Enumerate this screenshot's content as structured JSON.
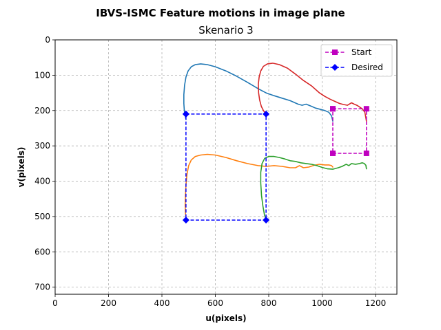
{
  "chart_data": {
    "type": "line",
    "suptitle": "IBVS-ISMC Feature motions in image plane",
    "title": "Skenario 3",
    "xlabel": "u(pixels)",
    "ylabel": "v(pixels)",
    "xlim": [
      0,
      1280
    ],
    "ylim": [
      720,
      0
    ],
    "y_inverted": true,
    "xticks": [
      0,
      200,
      400,
      600,
      800,
      1000,
      1200
    ],
    "yticks": [
      0,
      100,
      200,
      300,
      400,
      500,
      600,
      700
    ],
    "grid": true,
    "legend_position": "top-right",
    "legend": [
      {
        "label": "Start",
        "color": "#bf00bf",
        "marker": "square",
        "linestyle": "dashed"
      },
      {
        "label": "Desired",
        "color": "#0000ff",
        "marker": "diamond",
        "linestyle": "dashed"
      }
    ],
    "start_points": {
      "u": [
        1040,
        1166,
        1166,
        1040,
        1040
      ],
      "v": [
        195,
        195,
        321,
        321,
        195
      ]
    },
    "desired_points": {
      "u": [
        490,
        790,
        790,
        490,
        490
      ],
      "v": [
        210,
        210,
        510,
        510,
        210
      ]
    },
    "trajectories": [
      {
        "color": "#1f77b4",
        "u": [
          1040,
          1035,
          1025,
          1010,
          990,
          975,
          960,
          940,
          925,
          910,
          880,
          850,
          820,
          790,
          760,
          720,
          680,
          640,
          600,
          570,
          545,
          525,
          510,
          498,
          490,
          485,
          482,
          482,
          484,
          487,
          490
        ],
        "v": [
          230,
          215,
          205,
          200,
          196,
          193,
          188,
          182,
          185,
          182,
          172,
          165,
          158,
          150,
          138,
          120,
          103,
          88,
          76,
          70,
          68,
          70,
          76,
          88,
          105,
          128,
          155,
          180,
          200,
          215,
          225
        ]
      },
      {
        "color": "#d62728",
        "u": [
          1166,
          1160,
          1150,
          1140,
          1130,
          1120,
          1110,
          1095,
          1080,
          1065,
          1050,
          1030,
          1010,
          990,
          960,
          930,
          900,
          870,
          840,
          815,
          795,
          780,
          770,
          764,
          761,
          762,
          766,
          772,
          780,
          786,
          790
        ],
        "v": [
          230,
          205,
          195,
          190,
          185,
          182,
          178,
          185,
          183,
          180,
          175,
          168,
          160,
          150,
          130,
          115,
          97,
          80,
          70,
          66,
          68,
          75,
          88,
          105,
          125,
          150,
          170,
          188,
          200,
          206,
          210
        ]
      },
      {
        "color": "#ff7f0e",
        "u": [
          1040,
          1035,
          1025,
          1010,
          990,
          970,
          950,
          930,
          915,
          900,
          880,
          850,
          820,
          790,
          760,
          720,
          680,
          640,
          600,
          570,
          545,
          525,
          510,
          500,
          494,
          490,
          488,
          487,
          488,
          490,
          492
        ],
        "v": [
          360,
          356,
          354,
          354,
          352,
          355,
          360,
          362,
          356,
          362,
          362,
          358,
          356,
          358,
          356,
          350,
          342,
          333,
          326,
          324,
          326,
          330,
          340,
          356,
          380,
          410,
          440,
          468,
          490,
          502,
          510
        ]
      },
      {
        "color": "#2ca02c",
        "u": [
          1166,
          1164,
          1158,
          1150,
          1140,
          1125,
          1110,
          1100,
          1090,
          1075,
          1060,
          1040,
          1020,
          1000,
          980,
          960,
          940,
          920,
          900,
          880,
          860,
          840,
          820,
          800,
          785,
          775,
          770,
          770,
          773,
          778,
          784,
          790
        ],
        "v": [
          365,
          355,
          350,
          348,
          350,
          352,
          350,
          356,
          352,
          358,
          362,
          366,
          365,
          361,
          356,
          352,
          350,
          348,
          344,
          342,
          337,
          333,
          330,
          330,
          335,
          350,
          375,
          405,
          440,
          470,
          495,
          510
        ]
      }
    ]
  }
}
